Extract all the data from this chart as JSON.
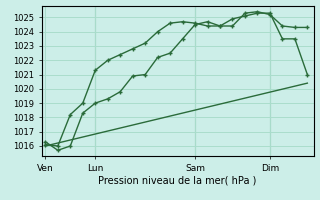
{
  "background_color": "#cceee8",
  "grid_color": "#aaddcc",
  "line_color": "#2a6b3a",
  "title": "Pression niveau de la mer( hPa )",
  "ylabel_ticks": [
    1016,
    1017,
    1018,
    1019,
    1020,
    1021,
    1022,
    1023,
    1024,
    1025
  ],
  "ylim": [
    1015.3,
    1025.8
  ],
  "x_tick_labels": [
    "Ven",
    "Lun",
    "Sam",
    "Dim"
  ],
  "x_tick_positions": [
    0,
    4,
    12,
    18
  ],
  "xlim": [
    -0.3,
    21.5
  ],
  "vline_positions": [
    4,
    12,
    18
  ],
  "line1_x": [
    0,
    1,
    2,
    3,
    4,
    5,
    6,
    7,
    8,
    9,
    10,
    11,
    12,
    13,
    14,
    15,
    16,
    17,
    18,
    19,
    20,
    21
  ],
  "line1_y": [
    1016.3,
    1015.7,
    1016.0,
    1018.3,
    1019.0,
    1019.3,
    1019.8,
    1020.9,
    1021.0,
    1022.2,
    1022.5,
    1023.5,
    1024.5,
    1024.7,
    1024.4,
    1024.4,
    1025.3,
    1025.4,
    1025.2,
    1024.4,
    1024.3,
    1024.3
  ],
  "line2_x": [
    0,
    1,
    2,
    3,
    4,
    5,
    6,
    7,
    8,
    9,
    10,
    11,
    12,
    13,
    14,
    15,
    16,
    17,
    18,
    19,
    20,
    21
  ],
  "line2_y": [
    1016.1,
    1016.0,
    1018.2,
    1019.0,
    1021.3,
    1022.0,
    1022.4,
    1022.8,
    1023.2,
    1024.0,
    1024.6,
    1024.7,
    1024.6,
    1024.4,
    1024.4,
    1024.9,
    1025.1,
    1025.3,
    1025.3,
    1023.5,
    1023.5,
    1021.0
  ],
  "line3_x": [
    0,
    21
  ],
  "line3_y": [
    1016.0,
    1020.4
  ]
}
